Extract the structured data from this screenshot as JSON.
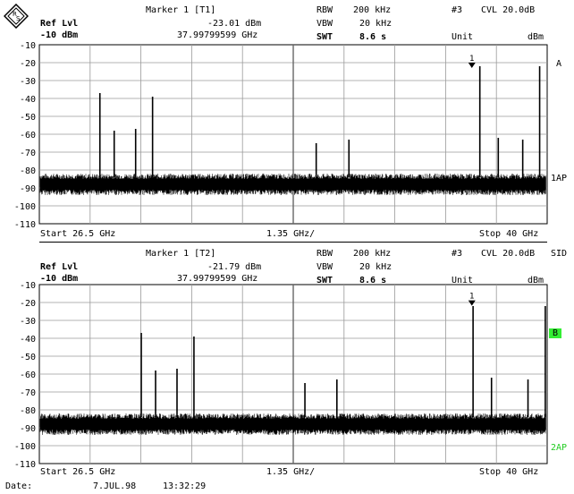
{
  "screen1": {
    "marker_title": "Marker 1 [T1]",
    "ref_lvl_label": "Ref Lvl",
    "ref_lvl_value": "-10 dBm",
    "marker_level": "-23.01 dBm",
    "marker_freq": "37.99799599 GHz",
    "rbw_label": "RBW",
    "rbw_value": "200 kHz",
    "vbw_label": "VBW",
    "vbw_value": "20 kHz",
    "swt_label": "SWT",
    "swt_value": "8.6 s",
    "trace_no": "#3",
    "cvl": "CVL 20.0dB",
    "unit_label": "Unit",
    "unit_value": "dBm",
    "side_labels": [
      "A",
      "1AP"
    ],
    "start": "Start 26.5 GHz",
    "span": "1.35 GHz/",
    "stop": "Stop 40 GHz",
    "marker_flag": "1"
  },
  "screen2": {
    "marker_title": "Marker 1 [T2]",
    "ref_lvl_label": "Ref Lvl",
    "ref_lvl_value": "-10 dBm",
    "marker_level": "-21.79 dBm",
    "marker_freq": "37.99799599 GHz",
    "rbw_label": "RBW",
    "rbw_value": "200 kHz",
    "vbw_label": "VBW",
    "vbw_value": "20 kHz",
    "swt_label": "SWT",
    "swt_value": "8.6 s",
    "trace_no": "#3",
    "cvl": "CVL 20.0dB",
    "unit_label": "Unit",
    "unit_value": "dBm",
    "side_labels": [
      "SID",
      "B",
      "2AP"
    ],
    "start": "Start 26.5 GHz",
    "span": "1.35 GHz/",
    "stop": "Stop 40 GHz",
    "marker_flag": "1"
  },
  "footer": {
    "date_label": "Date:",
    "date_value": "7.JUL.98",
    "time_value": "13:32:29"
  },
  "colors": {
    "trace": "#000000",
    "grid": "#9a9a9a",
    "highlight_b": "#33ee33",
    "label_2ap": "#22cc22"
  },
  "chart_data": [
    {
      "type": "line",
      "xlabel": "",
      "ylabel": "",
      "x_range_ghz": [
        26.5,
        40
      ],
      "ylim": [
        -110,
        -10
      ],
      "y_ticks": [
        "-10",
        "-20",
        "-30",
        "-40",
        "-50",
        "-60",
        "-70",
        "-80",
        "-90",
        "-100",
        "-110"
      ],
      "noise_floor_dbm": -88,
      "peaks_ghz_dbm": [
        [
          28.11,
          -37
        ],
        [
          28.49,
          -58
        ],
        [
          29.06,
          -57
        ],
        [
          29.51,
          -39
        ],
        [
          33.86,
          -65
        ],
        [
          34.73,
          -63
        ],
        [
          38.21,
          -22
        ],
        [
          38.7,
          -62
        ],
        [
          39.35,
          -63
        ],
        [
          39.8,
          -22
        ]
      ],
      "marker": {
        "label": "1",
        "x_ghz": 37.998,
        "y_dbm": -23.01
      }
    },
    {
      "type": "line",
      "xlabel": "",
      "ylabel": "",
      "x_range_ghz": [
        26.5,
        40
      ],
      "ylim": [
        -110,
        -10
      ],
      "y_ticks": [
        "-10",
        "-20",
        "-30",
        "-40",
        "-50",
        "-60",
        "-70",
        "-80",
        "-90",
        "-100",
        "-110"
      ],
      "noise_floor_dbm": -88,
      "peaks_ghz_dbm": [
        [
          29.21,
          -37
        ],
        [
          29.59,
          -58
        ],
        [
          30.16,
          -57
        ],
        [
          30.61,
          -39
        ],
        [
          33.56,
          -65
        ],
        [
          34.41,
          -63
        ],
        [
          38.03,
          -22
        ],
        [
          38.52,
          -62
        ],
        [
          39.49,
          -63
        ],
        [
          39.95,
          -22
        ]
      ],
      "marker": {
        "label": "1",
        "x_ghz": 37.998,
        "y_dbm": -21.79
      }
    }
  ]
}
